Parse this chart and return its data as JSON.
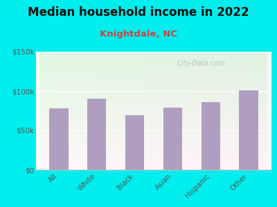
{
  "title": "Median household income in 2022",
  "subtitle": "Knightdale, NC",
  "categories": [
    "All",
    "White",
    "Black",
    "Asian",
    "Hispanic",
    "Other"
  ],
  "values": [
    78000,
    90000,
    69000,
    79000,
    86000,
    101000
  ],
  "bar_color": "#b09ec0",
  "title_fontsize": 12,
  "subtitle_fontsize": 9.5,
  "subtitle_color": "#cc4444",
  "title_color": "#111111",
  "tick_label_color": "#555555",
  "axis_label_color": "#555555",
  "bg_outer": "#00eeee",
  "ylim": [
    0,
    150000
  ],
  "yticks": [
    0,
    50000,
    100000,
    150000
  ],
  "ytick_labels": [
    "$0",
    "$50k",
    "$100k",
    "$150k"
  ],
  "watermark": "City-Data.com"
}
